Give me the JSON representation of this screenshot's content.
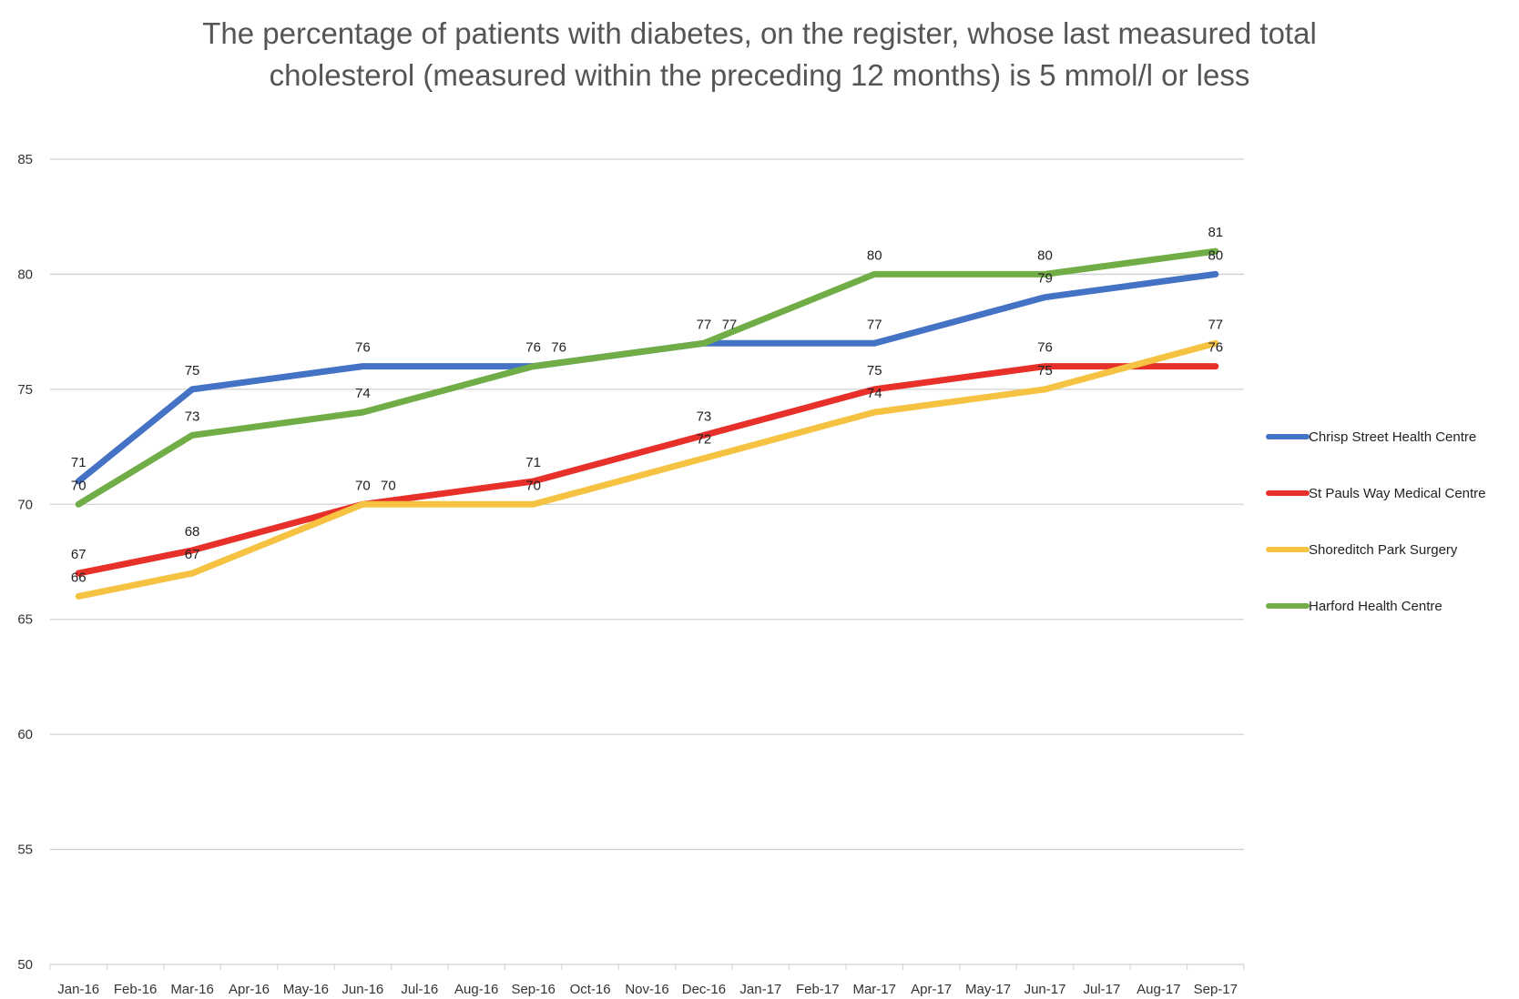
{
  "chart_data": {
    "type": "line",
    "title_lines": [
      "The percentage of patients with diabetes, on the register, whose last measured total",
      "cholesterol (measured within the preceding 12 months) is 5 mmol/l or less"
    ],
    "categories": [
      "Jan-16",
      "Feb-16",
      "Mar-16",
      "Apr-16",
      "May-16",
      "Jun-16",
      "Jul-16",
      "Aug-16",
      "Sep-16",
      "Oct-16",
      "Nov-16",
      "Dec-16",
      "Jan-17",
      "Feb-17",
      "Mar-17",
      "Apr-17",
      "May-17",
      "Jun-17",
      "Jul-17",
      "Aug-17",
      "Sep-17"
    ],
    "ylim": [
      50,
      85
    ],
    "yticks": [
      50,
      55,
      60,
      65,
      70,
      75,
      80,
      85
    ],
    "grid": true,
    "legend_position": "right",
    "series": [
      {
        "name": "Chrisp Street Health Centre",
        "color": "#4472C4",
        "points": [
          {
            "x": "Jan-16",
            "y": 71
          },
          {
            "x": "Mar-16",
            "y": 75
          },
          {
            "x": "Jun-16",
            "y": 76
          },
          {
            "x": "Sep-16",
            "y": 76
          },
          {
            "x": "Dec-16",
            "y": 77
          },
          {
            "x": "Mar-17",
            "y": 77
          },
          {
            "x": "Jun-17",
            "y": 79
          },
          {
            "x": "Sep-17",
            "y": 80
          }
        ]
      },
      {
        "name": "St Pauls Way Medical Centre",
        "color": "#E8302A",
        "points": [
          {
            "x": "Jan-16",
            "y": 67
          },
          {
            "x": "Mar-16",
            "y": 68
          },
          {
            "x": "Jun-16",
            "y": 70
          },
          {
            "x": "Sep-16",
            "y": 71
          },
          {
            "x": "Dec-16",
            "y": 73
          },
          {
            "x": "Mar-17",
            "y": 75
          },
          {
            "x": "Jun-17",
            "y": 76
          },
          {
            "x": "Sep-17",
            "y": 76
          }
        ]
      },
      {
        "name": "Shoreditch Park Surgery",
        "color": "#F5C242",
        "points": [
          {
            "x": "Jan-16",
            "y": 66
          },
          {
            "x": "Mar-16",
            "y": 67
          },
          {
            "x": "Jun-16",
            "y": 70
          },
          {
            "x": "Sep-16",
            "y": 70
          },
          {
            "x": "Dec-16",
            "y": 72
          },
          {
            "x": "Mar-17",
            "y": 74
          },
          {
            "x": "Jun-17",
            "y": 75
          },
          {
            "x": "Sep-17",
            "y": 77
          }
        ]
      },
      {
        "name": "Harford Health Centre",
        "color": "#70AD47",
        "points": [
          {
            "x": "Jan-16",
            "y": 70
          },
          {
            "x": "Mar-16",
            "y": 73
          },
          {
            "x": "Jun-16",
            "y": 74
          },
          {
            "x": "Sep-16",
            "y": 76
          },
          {
            "x": "Dec-16",
            "y": 77
          },
          {
            "x": "Mar-17",
            "y": 80
          },
          {
            "x": "Jun-17",
            "y": 80
          },
          {
            "x": "Sep-17",
            "y": 81
          }
        ]
      }
    ]
  }
}
